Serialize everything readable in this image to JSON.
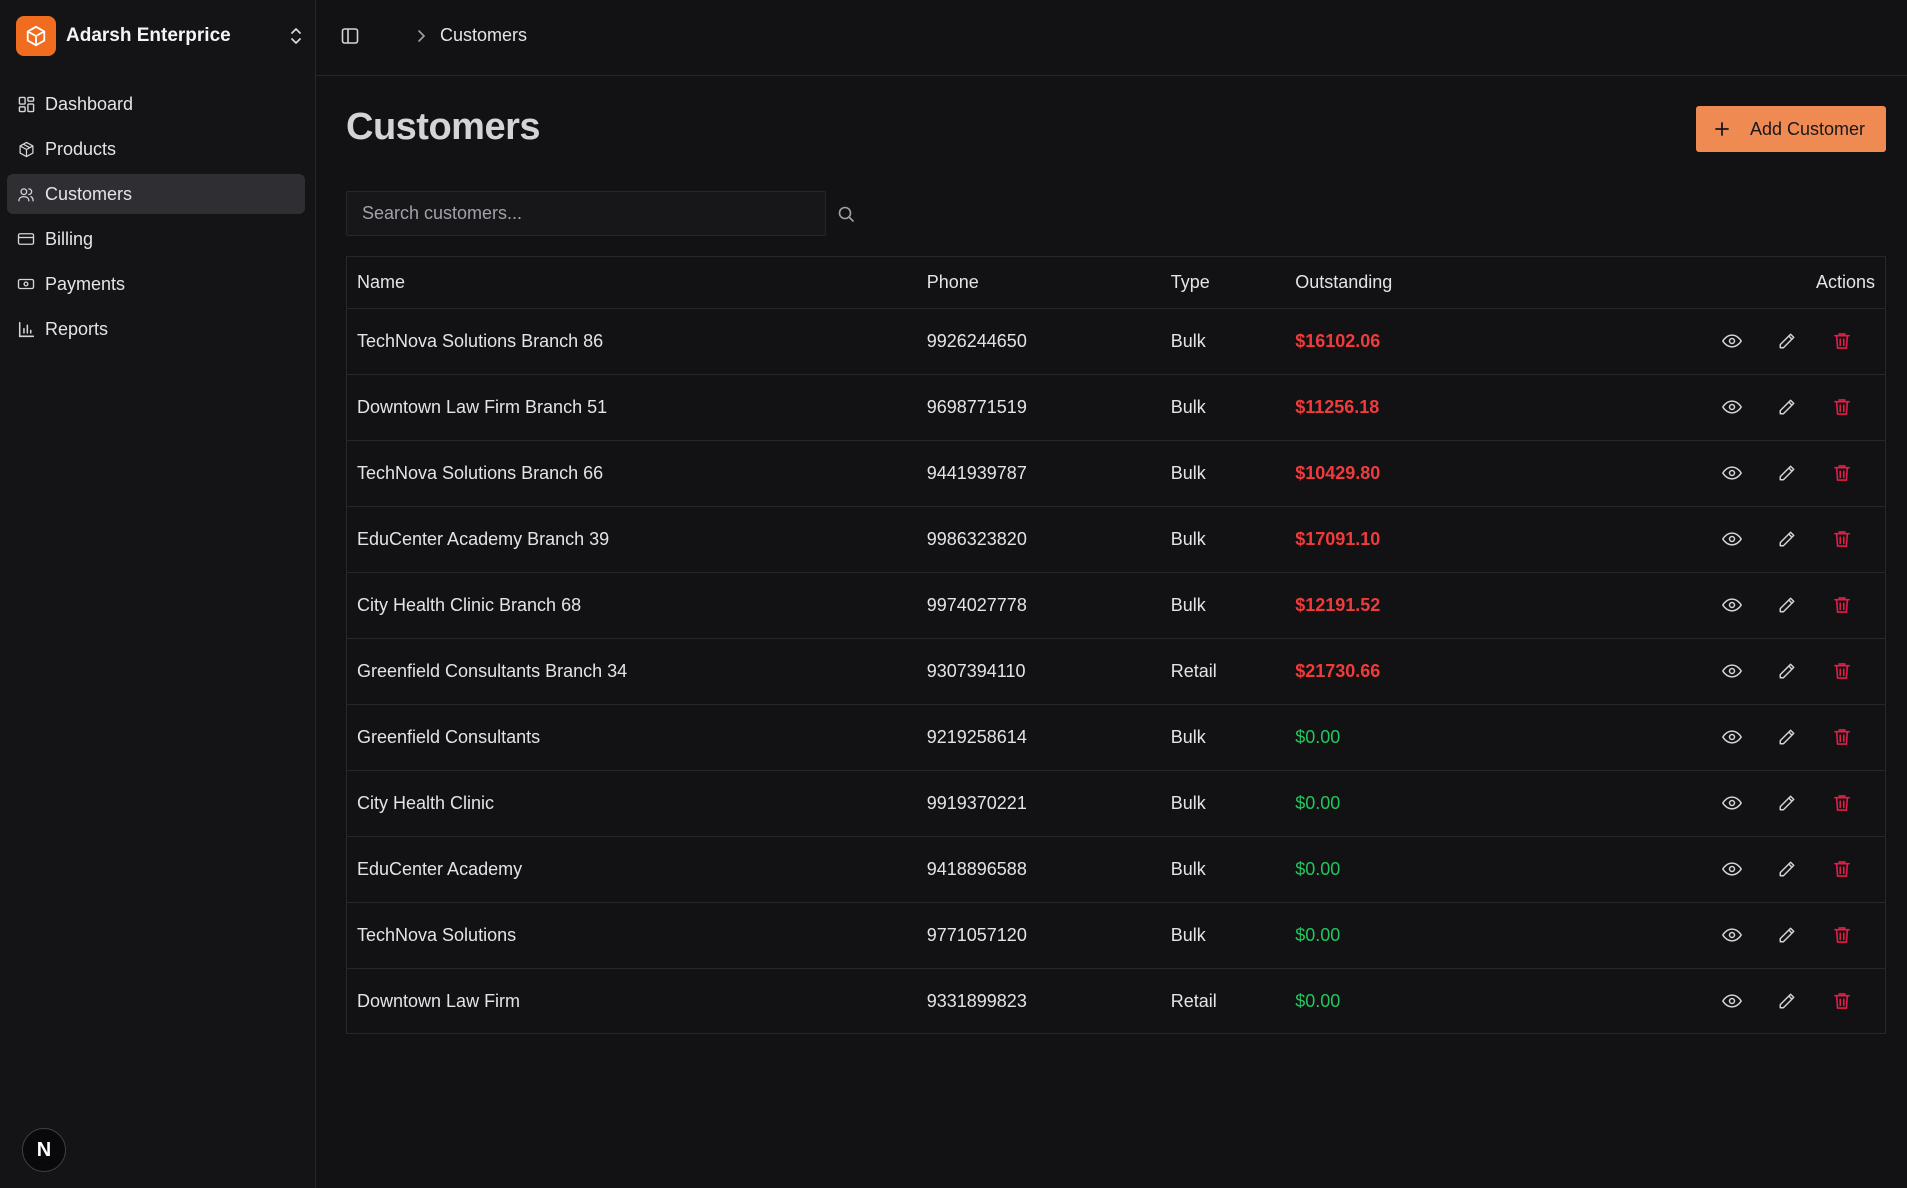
{
  "sidebar": {
    "brand_name": "Adarsh Enterprice",
    "items": [
      {
        "label": "Dashboard",
        "icon": "dashboard-icon"
      },
      {
        "label": "Products",
        "icon": "package-icon"
      },
      {
        "label": "Customers",
        "icon": "users-icon"
      },
      {
        "label": "Billing",
        "icon": "credit-card-icon"
      },
      {
        "label": "Payments",
        "icon": "banknote-icon"
      },
      {
        "label": "Reports",
        "icon": "bar-chart-icon"
      }
    ],
    "active_item": "Customers",
    "footer_badge": "N"
  },
  "header": {
    "breadcrumb": "Customers"
  },
  "main": {
    "title": "Customers",
    "add_button_label": "Add Customer",
    "search_placeholder": "Search customers...",
    "columns": [
      "Name",
      "Phone",
      "Type",
      "Outstanding",
      "Actions"
    ],
    "rows": [
      {
        "name": "TechNova Solutions Branch 86",
        "phone": "9926244650",
        "type": "Bulk",
        "outstanding": "$16102.06",
        "status": "due"
      },
      {
        "name": "Downtown Law Firm Branch 51",
        "phone": "9698771519",
        "type": "Bulk",
        "outstanding": "$11256.18",
        "status": "due"
      },
      {
        "name": "TechNova Solutions Branch 66",
        "phone": "9441939787",
        "type": "Bulk",
        "outstanding": "$10429.80",
        "status": "due"
      },
      {
        "name": "EduCenter Academy Branch 39",
        "phone": "9986323820",
        "type": "Bulk",
        "outstanding": "$17091.10",
        "status": "due"
      },
      {
        "name": "City Health Clinic Branch 68",
        "phone": "9974027778",
        "type": "Bulk",
        "outstanding": "$12191.52",
        "status": "due"
      },
      {
        "name": "Greenfield Consultants Branch 34",
        "phone": "9307394110",
        "type": "Retail",
        "outstanding": "$21730.66",
        "status": "due"
      },
      {
        "name": "Greenfield Consultants",
        "phone": "9219258614",
        "type": "Bulk",
        "outstanding": "$0.00",
        "status": "clear"
      },
      {
        "name": "City Health Clinic",
        "phone": "9919370221",
        "type": "Bulk",
        "outstanding": "$0.00",
        "status": "clear"
      },
      {
        "name": "EduCenter Academy",
        "phone": "9418896588",
        "type": "Bulk",
        "outstanding": "$0.00",
        "status": "clear"
      },
      {
        "name": "TechNova Solutions",
        "phone": "9771057120",
        "type": "Bulk",
        "outstanding": "$0.00",
        "status": "clear"
      },
      {
        "name": "Downtown Law Firm",
        "phone": "9331899823",
        "type": "Retail",
        "outstanding": "$0.00",
        "status": "clear"
      }
    ]
  },
  "colors": {
    "accent": "#f06d1f",
    "button": "#ee8a52",
    "due": "#ef3b3b",
    "clear": "#22c55e",
    "delete": "#e11d48"
  }
}
